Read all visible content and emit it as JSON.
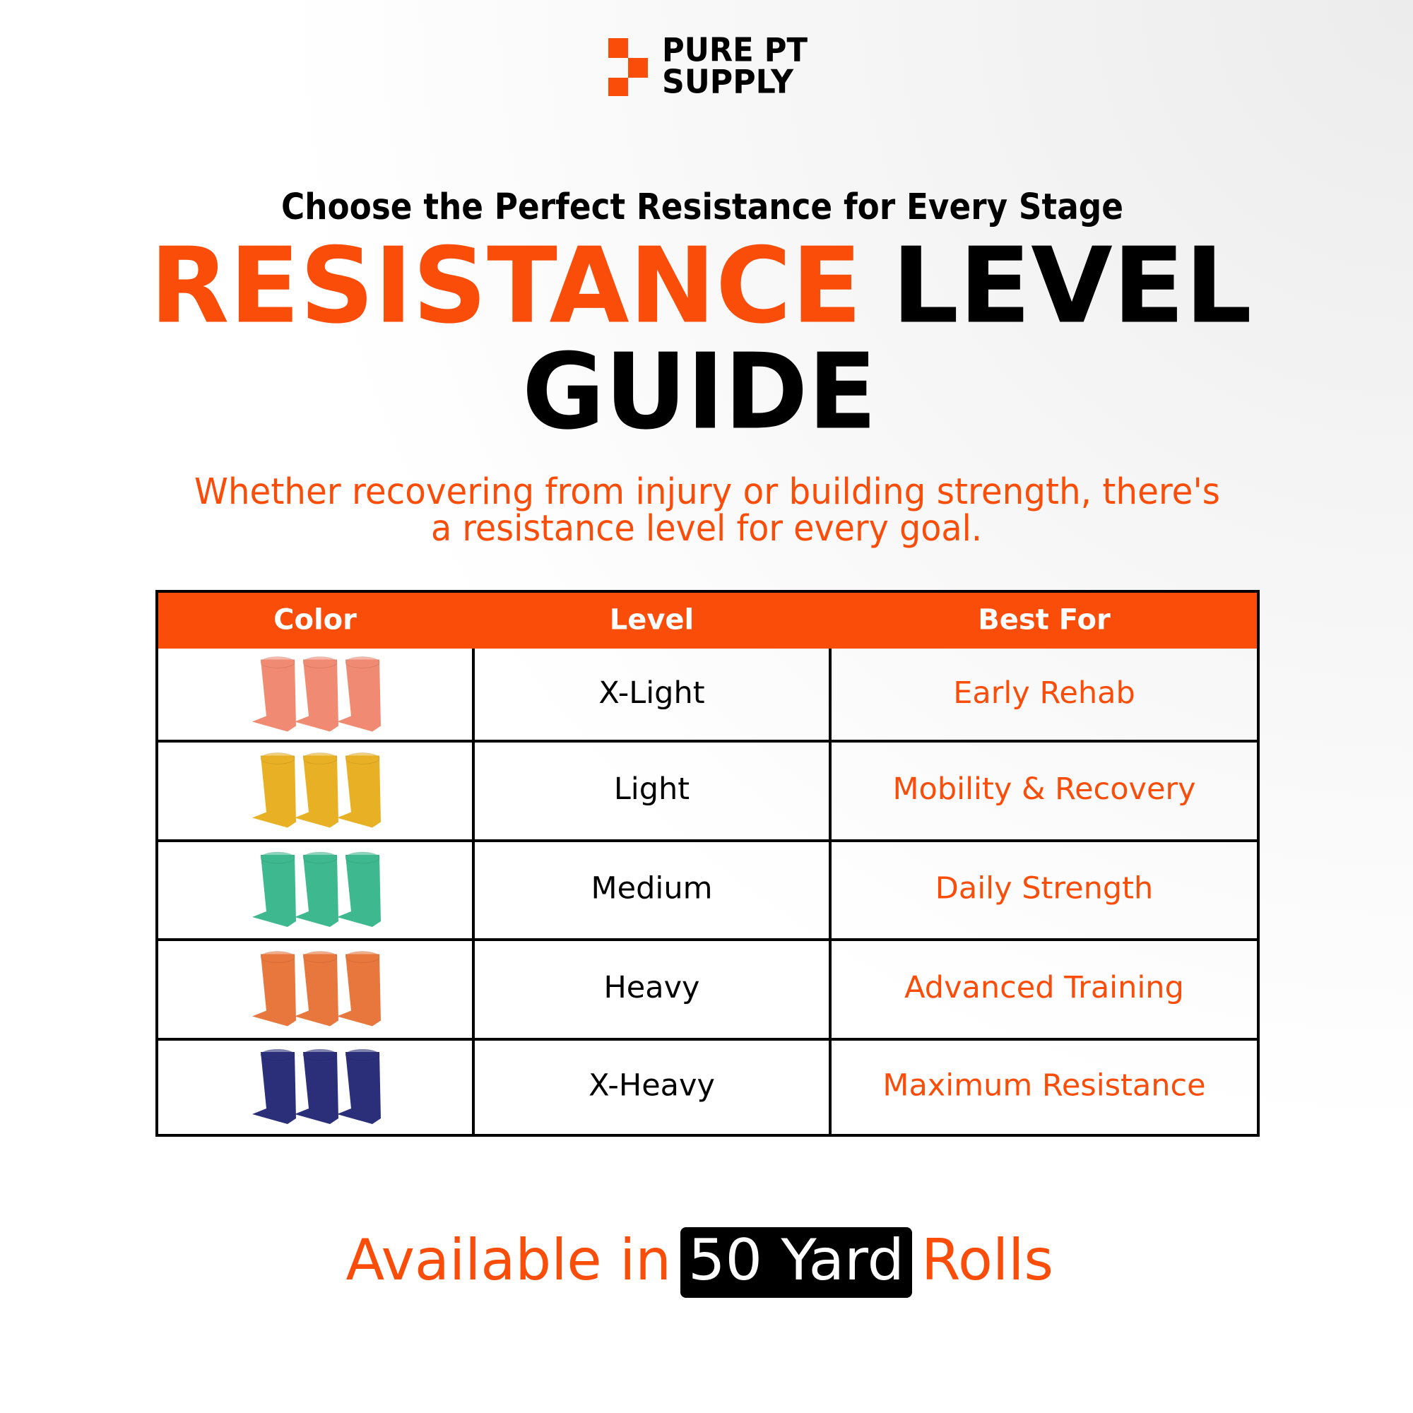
{
  "brand": {
    "line1": "PURE PT",
    "line2": "SUPPLY"
  },
  "header": {
    "subtitle": "Choose the Perfect Resistance for Every Stage",
    "title_highlight": "RESISTANCE",
    "title_rest": "LEVEL",
    "title_line2": "GUIDE",
    "description_line1": "Whether recovering from injury or building strength, there's",
    "description_line2": "a resistance level for every goal."
  },
  "table": {
    "columns": [
      "Color",
      "Level",
      "Best For"
    ],
    "rows": [
      {
        "level": "X-Light",
        "best_for": "Early Rehab"
      },
      {
        "level": "Light",
        "best_for": "Mobility & Recovery"
      },
      {
        "level": "Medium",
        "best_for": "Daily Strength"
      },
      {
        "level": "Heavy",
        "best_for": "Advanced Training"
      },
      {
        "level": "X-Heavy",
        "best_for": "Maximum Resistance"
      }
    ]
  },
  "footer": {
    "prefix": "Available in",
    "highlight": "50 Yard",
    "suffix": "Rolls"
  }
}
